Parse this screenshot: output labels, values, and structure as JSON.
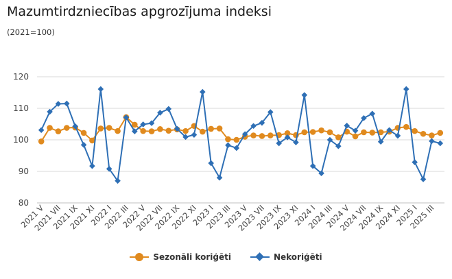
{
  "chart_data": {
    "type": "line",
    "title": "Mazumtirdzniecības apgrozījuma indeksi",
    "subtitle": "(2021=100)",
    "xlabel": "",
    "ylabel": "",
    "ylim": [
      80,
      120
    ],
    "yticks": [
      80,
      90,
      100,
      110,
      120
    ],
    "grid": true,
    "legend_position": "bottom",
    "x": [
      "2021 V",
      "2021 VI",
      "2021 VII",
      "2021 VIII",
      "2021 IX",
      "2021 X",
      "2021 XI",
      "2021 XII",
      "2022 I",
      "2022 II",
      "2022 III",
      "2022 IV",
      "2022 V",
      "2022 VI",
      "2022 VII",
      "2022 VIII",
      "2022 IX",
      "2022 X",
      "2022 XI",
      "2022 XII",
      "2023 I",
      "2023 II",
      "2023 III",
      "2023 IV",
      "2023 V",
      "2023 VI",
      "2023 VII",
      "2023 VIII",
      "2023 IX",
      "2023 X",
      "2023 XI",
      "2023 XII",
      "2024 I",
      "2024 II",
      "2024 III",
      "2024 IV",
      "2024 V",
      "2024 VI",
      "2024 VII",
      "2024 VIII",
      "2024 IX",
      "2024 X",
      "2024 XI",
      "2024 XII",
      "2025 I",
      "2025 II",
      "2025 III",
      "2025 IV"
    ],
    "x_tick_labels": [
      "2021 V",
      "2021 VII",
      "2021 IX",
      "2021 XI",
      "2022 I",
      "2022 III",
      "2022 V",
      "2022 VII",
      "2022 IX",
      "2022 XI",
      "2023 I",
      "2023 III",
      "2023 V",
      "2023 VII",
      "2023 IX",
      "2023 XI",
      "2024 I",
      "2024 III",
      "2024 V",
      "2024 VII",
      "2024 IX",
      "2024 XI",
      "2025 I",
      "2025 III"
    ],
    "series": [
      {
        "name": "Sezonāli koriģēti",
        "color": "#e08a1e",
        "marker": "circle",
        "values": [
          99.5,
          103.8,
          102.7,
          103.8,
          103.9,
          102.2,
          99.8,
          103.6,
          103.8,
          102.8,
          107.2,
          104.8,
          102.8,
          102.7,
          103.4,
          102.9,
          103.3,
          102.8,
          104.4,
          102.6,
          103.5,
          103.6,
          100.2,
          100.0,
          101.0,
          101.4,
          101.2,
          101.4,
          101.5,
          102.1,
          101.5,
          102.4,
          102.5,
          103.0,
          102.4,
          100.8,
          102.6,
          101.1,
          102.4,
          102.3,
          102.4,
          102.6,
          103.8,
          104.1,
          102.8,
          101.9,
          101.4,
          102.2
        ]
      },
      {
        "name": "Nekoriģēti",
        "color": "#2e6fb5",
        "marker": "diamond",
        "values": [
          103.1,
          108.9,
          111.4,
          111.5,
          104.3,
          98.4,
          91.7,
          116.1,
          90.8,
          87.0,
          107.1,
          102.7,
          104.9,
          105.3,
          108.6,
          109.8,
          103.5,
          100.9,
          101.6,
          115.2,
          92.6,
          88.0,
          98.3,
          97.4,
          101.8,
          104.4,
          105.4,
          108.8,
          98.9,
          100.8,
          99.2,
          114.2,
          91.7,
          89.4,
          100.0,
          98.0,
          104.5,
          102.9,
          106.9,
          108.3,
          99.4,
          103.1,
          101.3,
          116.1,
          92.9,
          87.5,
          99.6,
          98.9
        ]
      }
    ]
  }
}
